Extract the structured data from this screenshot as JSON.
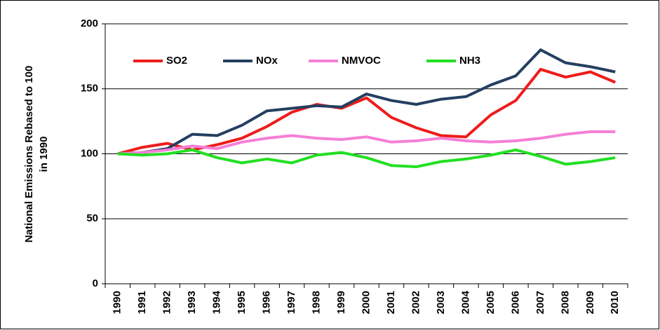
{
  "chart_data": {
    "type": "line",
    "ylabel": [
      "National Emissions Rebased to 100",
      "in 1990"
    ],
    "categories": [
      "1990",
      "1991",
      "1992",
      "1993",
      "1994",
      "1995",
      "1996",
      "1997",
      "1998",
      "1999",
      "2000",
      "2001",
      "2002",
      "2003",
      "2004",
      "2005",
      "2006",
      "2007",
      "2008",
      "2009",
      "2010"
    ],
    "series": [
      {
        "name": "SO2",
        "color": "#ee1c1c",
        "values": [
          100,
          105,
          108,
          103,
          107,
          112,
          121,
          132,
          138,
          135,
          143,
          128,
          120,
          114,
          113,
          130,
          141,
          165,
          159,
          163,
          155
        ]
      },
      {
        "name": "NOx",
        "color": "#243f60",
        "values": [
          100,
          101,
          104,
          115,
          114,
          122,
          133,
          135,
          137,
          136,
          146,
          141,
          138,
          142,
          144,
          153,
          160,
          180,
          170,
          167,
          163
        ]
      },
      {
        "name": "NMVOC",
        "color": "#f57fd6",
        "values": [
          100,
          101,
          103,
          106,
          104,
          109,
          112,
          114,
          112,
          111,
          113,
          109,
          110,
          112,
          110,
          109,
          110,
          112,
          115,
          117,
          117
        ]
      },
      {
        "name": "NH3",
        "color": "#22e022",
        "values": [
          100,
          99,
          100,
          103,
          97,
          93,
          96,
          93,
          99,
          101,
          97,
          91,
          90,
          94,
          96,
          99,
          103,
          98,
          92,
          94,
          97
        ]
      }
    ],
    "ylim": [
      0,
      200
    ],
    "yticks": [
      0,
      50,
      100,
      150,
      200
    ],
    "grid": true,
    "legend": "top"
  }
}
